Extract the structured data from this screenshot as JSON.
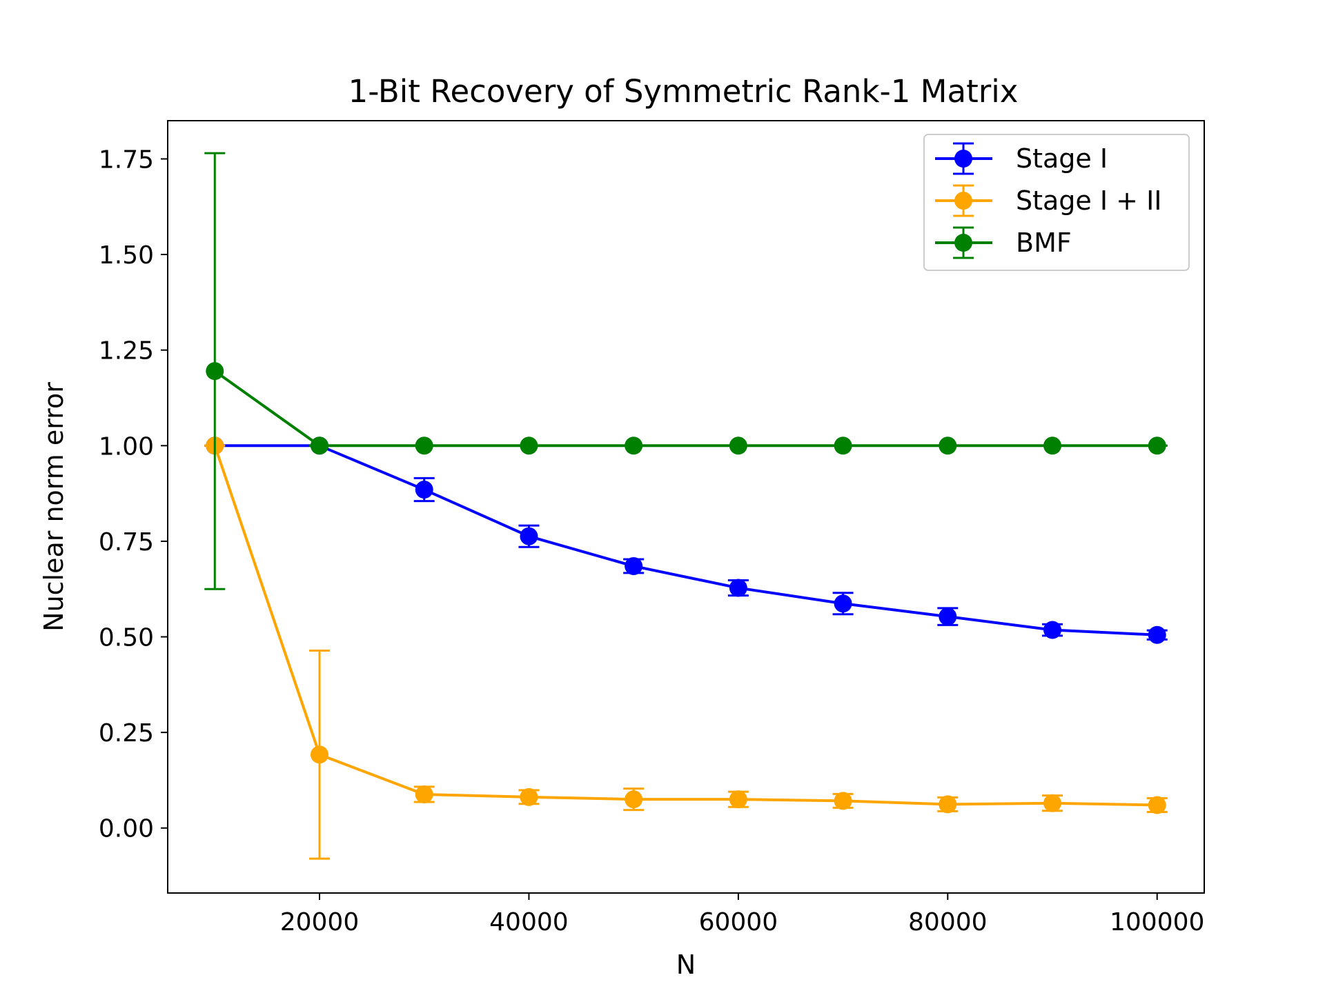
{
  "chart_data": {
    "type": "line",
    "title": "1-Bit Recovery of Symmetric Rank-1 Matrix",
    "xlabel": "N",
    "ylabel": "Nuclear norm error",
    "xlim": [
      5500,
      104500
    ],
    "ylim": [
      -0.17,
      1.85
    ],
    "xticks": [
      20000,
      40000,
      60000,
      80000,
      100000
    ],
    "xtick_labels": [
      "20000",
      "40000",
      "60000",
      "80000",
      "100000"
    ],
    "yticks": [
      0.0,
      0.25,
      0.5,
      0.75,
      1.0,
      1.25,
      1.5,
      1.75
    ],
    "ytick_labels": [
      "0.00",
      "0.25",
      "0.50",
      "0.75",
      "1.00",
      "1.25",
      "1.50",
      "1.75"
    ],
    "grid": false,
    "legend_position": "top-right",
    "x": [
      10000,
      20000,
      30000,
      40000,
      50000,
      60000,
      70000,
      80000,
      90000,
      100000
    ],
    "series": [
      {
        "name": "Stage I",
        "color": "#0000ff",
        "values": [
          1.0,
          1.0,
          0.885,
          0.763,
          0.685,
          0.628,
          0.587,
          0.553,
          0.518,
          0.505
        ],
        "errors": [
          0.0,
          0.0,
          0.03,
          0.028,
          0.018,
          0.02,
          0.028,
          0.022,
          0.015,
          0.012
        ]
      },
      {
        "name": "Stage I + II",
        "color": "#ffa500",
        "values": [
          1.0,
          0.192,
          0.088,
          0.081,
          0.075,
          0.075,
          0.071,
          0.062,
          0.065,
          0.06
        ],
        "errors": [
          0.0,
          0.272,
          0.02,
          0.018,
          0.028,
          0.02,
          0.018,
          0.018,
          0.02,
          0.018
        ]
      },
      {
        "name": "BMF",
        "color": "#008000",
        "values": [
          1.195,
          1.0,
          1.0,
          1.0,
          1.0,
          1.0,
          1.0,
          1.0,
          1.0,
          1.0
        ],
        "errors": [
          0.57,
          0.0,
          0.0,
          0.0,
          0.0,
          0.0,
          0.0,
          0.0,
          0.0,
          0.0
        ]
      }
    ]
  }
}
